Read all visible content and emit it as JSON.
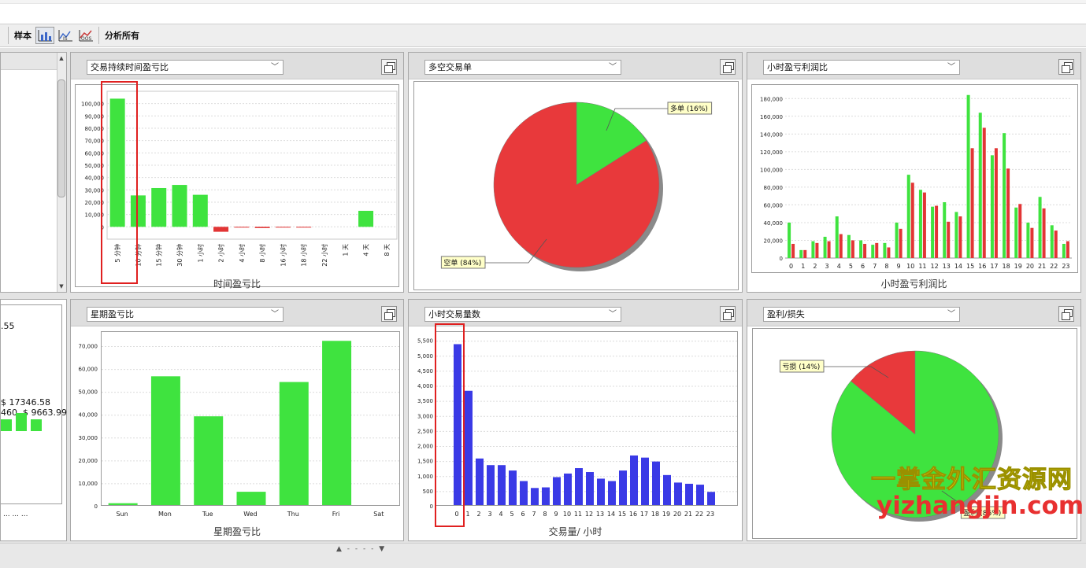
{
  "toolbar": {
    "sample_label": "样本",
    "analyze_all_label": "分析所有",
    "buttons": [
      "all-chart",
      "in-sample",
      "oos"
    ]
  },
  "left_panel": {
    "value_a": ".55",
    "value_b": "$ 17346.58",
    "value_c": "460. $ 9663.99",
    "dots": "...    ...    ..."
  },
  "panels": {
    "duration": {
      "dropdown": "交易持续时间盈亏比",
      "caption": "时间盈亏比",
      "chart_data": {
        "type": "bar",
        "categories": [
          "5 分钟",
          "10 分钟",
          "15 分钟",
          "30 分钟",
          "1 小时",
          "2 小时",
          "4 小时",
          "8 小时",
          "16 小时",
          "18 小时",
          "22 小时",
          "1 天",
          "4 天",
          "8 天"
        ],
        "values": [
          104000,
          25500,
          31500,
          34000,
          26000,
          -4000,
          -500,
          -1000,
          -400,
          -300,
          0,
          0,
          13000,
          0
        ],
        "ylim": [
          -10000,
          110000
        ],
        "yticks": [
          0,
          10000,
          20000,
          30000,
          40000,
          50000,
          60000,
          70000,
          80000,
          90000,
          100000
        ],
        "ytick_labels": [
          "0",
          "10,000",
          "20,000",
          "30,000",
          "40,000",
          "50,000",
          "60,000",
          "70,000",
          "80,000",
          "90,000",
          "100,000"
        ],
        "colors": {
          "pos": "#3fe33f",
          "neg": "#e23535"
        }
      }
    },
    "longshort": {
      "dropdown": "多空交易单",
      "chart_data": {
        "type": "pie",
        "slices": [
          {
            "label": "多单 (16%)",
            "value": 16,
            "color": "#3fe33f"
          },
          {
            "label": "空单 (84%)",
            "value": 84,
            "color": "#e8393b"
          }
        ]
      }
    },
    "hourly_pl": {
      "dropdown": "小时盈亏利润比",
      "caption": "小时盈亏利润比",
      "chart_data": {
        "type": "bar",
        "categories": [
          "0",
          "1",
          "2",
          "3",
          "4",
          "5",
          "6",
          "7",
          "8",
          "9",
          "10",
          "11",
          "12",
          "13",
          "14",
          "15",
          "16",
          "17",
          "18",
          "19",
          "20",
          "21",
          "22",
          "23"
        ],
        "series": [
          {
            "values": [
              40000,
              9000,
              19000,
              24000,
              47000,
              26000,
              20000,
              15000,
              17000,
              40000,
              94000,
              77000,
              58000,
              63000,
              52000,
              184000,
              164000,
              116000,
              141000,
              57000,
              40000,
              69000,
              37000,
              16000
            ],
            "color": "#3fe33f"
          },
          {
            "values": [
              16000,
              9000,
              17000,
              19000,
              27000,
              20000,
              16000,
              17000,
              12000,
              33000,
              85000,
              74000,
              59000,
              41000,
              47000,
              124000,
              147000,
              124000,
              101000,
              61000,
              34000,
              56000,
              31000,
              19000
            ],
            "color": "#e23535"
          }
        ],
        "ylim": [
          0,
          190000
        ],
        "yticks": [
          0,
          20000,
          40000,
          60000,
          80000,
          100000,
          120000,
          140000,
          160000,
          180000
        ],
        "ytick_labels": [
          "0",
          "20,000",
          "40,000",
          "60,000",
          "80,000",
          "100,000",
          "120,000",
          "140,000",
          "160,000",
          "180,000"
        ]
      }
    },
    "weekday": {
      "dropdown": "星期盈亏比",
      "caption": "星期盈亏比",
      "chart_data": {
        "type": "bar",
        "categories": [
          "Sun",
          "Mon",
          "Tue",
          "Wed",
          "Thu",
          "Fri",
          "Sat"
        ],
        "values": [
          1500,
          57000,
          39500,
          6500,
          54500,
          72500,
          0
        ],
        "ylim": [
          0,
          75000
        ],
        "yticks": [
          0,
          10000,
          20000,
          30000,
          40000,
          50000,
          60000,
          70000
        ],
        "ytick_labels": [
          "0",
          "10,000",
          "20,000",
          "30,000",
          "40,000",
          "50,000",
          "60,000",
          "70,000"
        ],
        "colors": {
          "pos": "#3fe33f"
        }
      }
    },
    "hourly_count": {
      "dropdown": "小时交易量数",
      "caption": "交易量/ 小时",
      "chart_data": {
        "type": "bar",
        "categories": [
          "0",
          "1",
          "2",
          "3",
          "4",
          "5",
          "6",
          "7",
          "8",
          "9",
          "10",
          "11",
          "12",
          "13",
          "14",
          "15",
          "16",
          "17",
          "18",
          "19",
          "20",
          "21",
          "22",
          "23"
        ],
        "values": [
          5400,
          3850,
          1600,
          1380,
          1380,
          1200,
          850,
          620,
          640,
          980,
          1100,
          1280,
          1150,
          930,
          850,
          1200,
          1700,
          1630,
          1500,
          1050,
          800,
          760,
          730,
          490
        ],
        "ylim": [
          0,
          5700
        ],
        "yticks": [
          0,
          500,
          1000,
          1500,
          2000,
          2500,
          3000,
          3500,
          4000,
          4500,
          5000,
          5500
        ],
        "ytick_labels": [
          "0",
          "500",
          "1,000",
          "1,500",
          "2,000",
          "2,500",
          "3,000",
          "3,500",
          "4,000",
          "4,500",
          "5,000",
          "5,500"
        ],
        "colors": {
          "pos": "#3a3ae6"
        }
      }
    },
    "winloss": {
      "dropdown": "盈利/损失",
      "chart_data": {
        "type": "pie",
        "slices": [
          {
            "label": "亏损 (14%)",
            "value": 14,
            "color": "#e8393b"
          },
          {
            "label": "盈利 (86%)",
            "value": 86,
            "color": "#3fe33f"
          }
        ]
      }
    }
  },
  "footer": {
    "grip": "▲ - - - - ▼"
  },
  "watermark": {
    "line1": "一掌金外汇资源网",
    "line2": "yizhangjin.com"
  }
}
